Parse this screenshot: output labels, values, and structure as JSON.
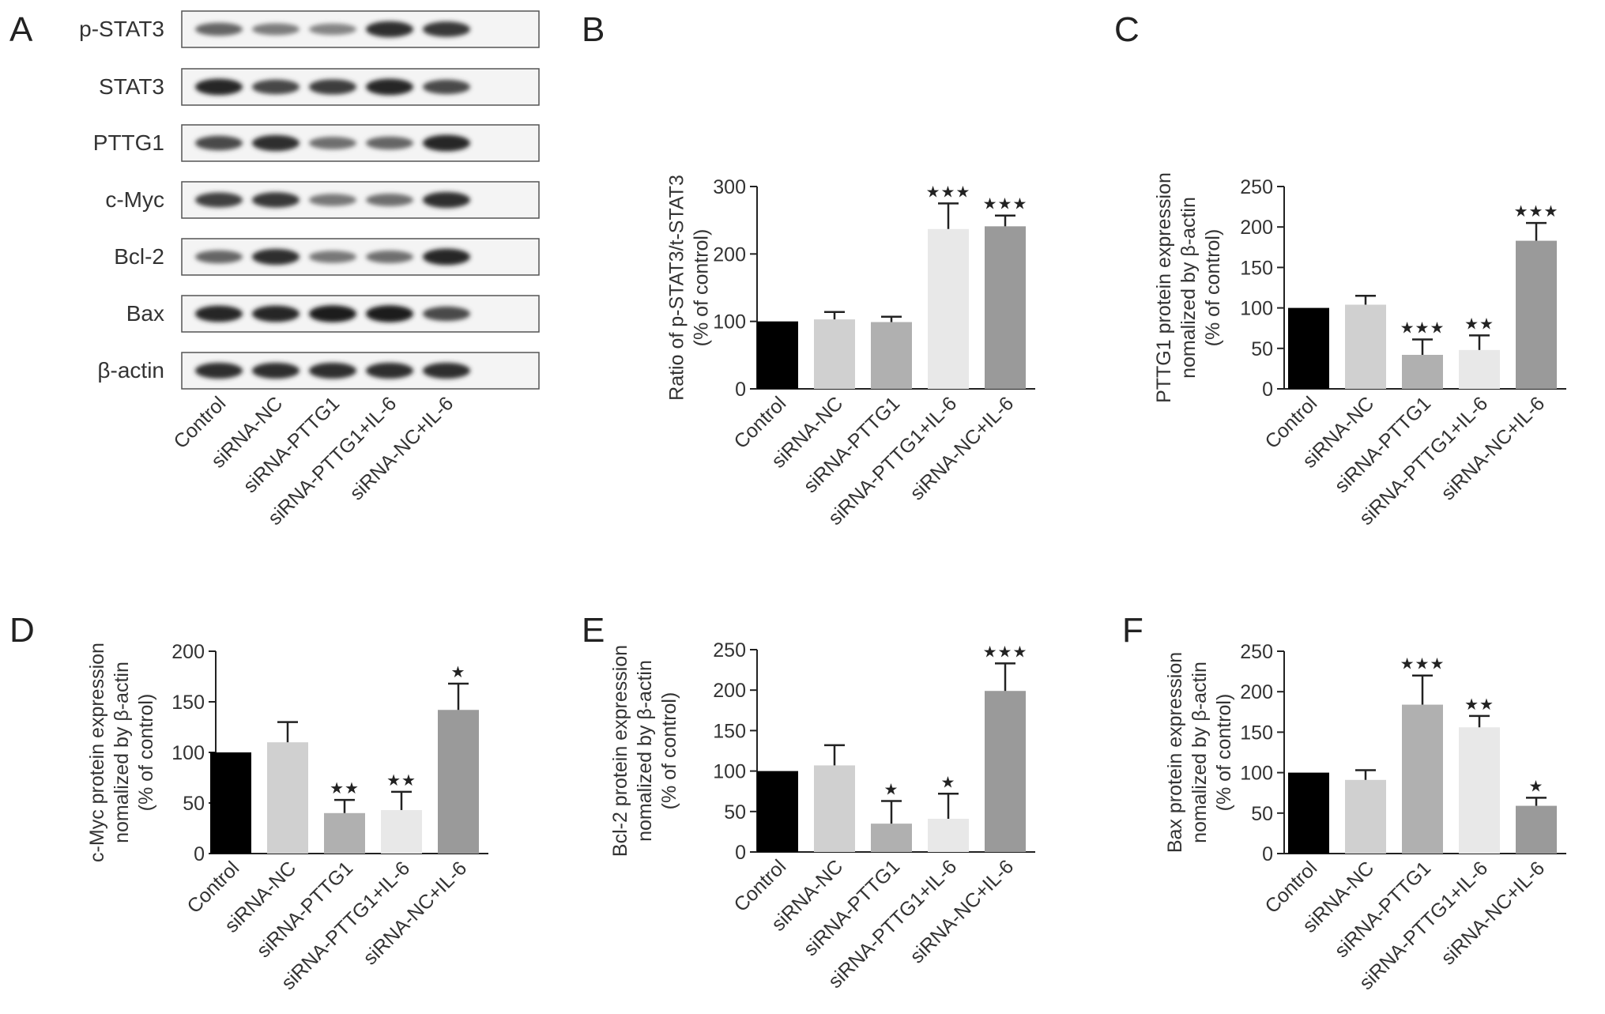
{
  "panel_letters": [
    "A",
    "B",
    "C",
    "D",
    "E",
    "F"
  ],
  "blot": {
    "bands": [
      {
        "label": "p-STAT3",
        "intensities": [
          0.55,
          0.42,
          0.38,
          0.85,
          0.8
        ]
      },
      {
        "label": "STAT3",
        "intensities": [
          0.9,
          0.72,
          0.78,
          0.9,
          0.7
        ]
      },
      {
        "label": "PTTG1",
        "intensities": [
          0.7,
          0.85,
          0.5,
          0.55,
          0.9
        ]
      },
      {
        "label": "c-Myc",
        "intensities": [
          0.75,
          0.8,
          0.45,
          0.5,
          0.85
        ]
      },
      {
        "label": "Bcl-2",
        "intensities": [
          0.55,
          0.85,
          0.45,
          0.5,
          0.9
        ]
      },
      {
        "label": "Bax",
        "intensities": [
          0.9,
          0.9,
          0.95,
          0.95,
          0.7
        ]
      },
      {
        "label": "β-actin",
        "intensities": [
          0.85,
          0.85,
          0.85,
          0.85,
          0.85
        ]
      }
    ],
    "lane_labels": [
      "Control",
      "siRNA-NC",
      "siRNA-PTTG1",
      "siRNA-PTTG1+IL-6",
      "siRNA-NC+IL-6"
    ]
  },
  "chart_data": [
    {
      "panel": "B",
      "type": "bar",
      "categories": [
        "Control",
        "siRNA-NC",
        "siRNA-PTTG1",
        "siRNA-PTTG1+IL-6",
        "siRNA-NC+IL-6"
      ],
      "values": [
        100,
        103,
        99,
        237,
        241
      ],
      "errors": [
        0,
        11,
        8,
        38,
        16
      ],
      "significance": [
        "",
        "",
        "",
        "★★★",
        "★★★"
      ],
      "ylabel": [
        "Ratio of p-STAT3/t-STAT3",
        "(% of control)"
      ],
      "ylim": [
        0,
        300
      ],
      "yticks": [
        0,
        100,
        200,
        300
      ],
      "colors": [
        "#000000",
        "#d0d0d0",
        "#b0b0b0",
        "#e8e8e8",
        "#9a9a9a"
      ]
    },
    {
      "panel": "C",
      "type": "bar",
      "categories": [
        "Control",
        "siRNA-NC",
        "siRNA-PTTG1",
        "siRNA-PTTG1+IL-6",
        "siRNA-NC+IL-6"
      ],
      "values": [
        100,
        104,
        42,
        48,
        183
      ],
      "errors": [
        0,
        11,
        19,
        18,
        22
      ],
      "significance": [
        "",
        "",
        "★★★",
        "★★",
        "★★★"
      ],
      "ylabel": [
        "PTTG1 protein expression",
        "nomalized by β-actin",
        "(% of control)"
      ],
      "ylim": [
        0,
        250
      ],
      "yticks": [
        0,
        50,
        100,
        150,
        200,
        250
      ],
      "colors": [
        "#000000",
        "#d0d0d0",
        "#b0b0b0",
        "#e8e8e8",
        "#9a9a9a"
      ]
    },
    {
      "panel": "D",
      "type": "bar",
      "categories": [
        "Control",
        "siRNA-NC",
        "siRNA-PTTG1",
        "siRNA-PTTG1+IL-6",
        "siRNA-NC+IL-6"
      ],
      "values": [
        100,
        110,
        40,
        43,
        142
      ],
      "errors": [
        0,
        20,
        13,
        18,
        26
      ],
      "significance": [
        "",
        "",
        "★★",
        "★★",
        "★"
      ],
      "ylabel": [
        "c-Myc protein expression",
        "nomalized by β-actin",
        "(% of control)"
      ],
      "ylim": [
        0,
        200
      ],
      "yticks": [
        0,
        50,
        100,
        150,
        200
      ],
      "colors": [
        "#000000",
        "#d0d0d0",
        "#b0b0b0",
        "#e8e8e8",
        "#9a9a9a"
      ]
    },
    {
      "panel": "E",
      "type": "bar",
      "categories": [
        "Control",
        "siRNA-NC",
        "siRNA-PTTG1",
        "siRNA-PTTG1+IL-6",
        "siRNA-NC+IL-6"
      ],
      "values": [
        100,
        107,
        35,
        41,
        199
      ],
      "errors": [
        0,
        25,
        28,
        31,
        34
      ],
      "significance": [
        "",
        "",
        "★",
        "★",
        "★★★"
      ],
      "ylabel": [
        "Bcl-2 protein expression",
        "nomalized by β-actin",
        "(% of control)"
      ],
      "ylim": [
        0,
        250
      ],
      "yticks": [
        0,
        50,
        100,
        150,
        200,
        250
      ],
      "colors": [
        "#000000",
        "#d0d0d0",
        "#b0b0b0",
        "#e8e8e8",
        "#9a9a9a"
      ]
    },
    {
      "panel": "F",
      "type": "bar",
      "categories": [
        "Control",
        "siRNA-NC",
        "siRNA-PTTG1",
        "siRNA-PTTG1+IL-6",
        "siRNA-NC+IL-6"
      ],
      "values": [
        100,
        91,
        184,
        156,
        59
      ],
      "errors": [
        0,
        12,
        36,
        14,
        10
      ],
      "significance": [
        "",
        "",
        "★★★",
        "★★",
        "★"
      ],
      "ylabel": [
        "Bax protein expression",
        "nomalized by β-actin",
        "(% of control)"
      ],
      "ylim": [
        0,
        250
      ],
      "yticks": [
        0,
        50,
        100,
        150,
        200,
        250
      ],
      "colors": [
        "#000000",
        "#d0d0d0",
        "#b0b0b0",
        "#e8e8e8",
        "#9a9a9a"
      ]
    }
  ]
}
